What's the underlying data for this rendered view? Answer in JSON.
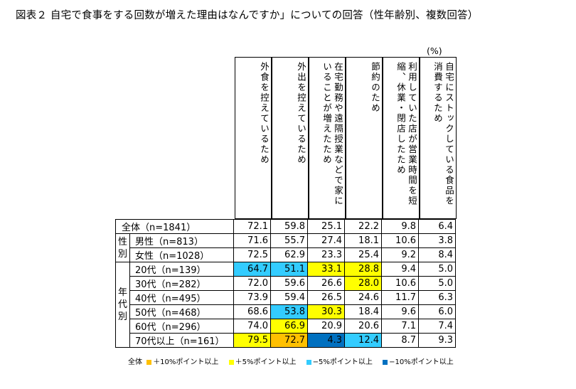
{
  "title": "図表２ 自宅で食事をする回数が増えた理由はなんですか」についての回答（性年齢別、複数回答）",
  "unit": "(%)",
  "columns": [
    "外食を控えているため",
    "外出を控えているため",
    "在宅勤務や遠隔授業などで家にいることが増えたため",
    "節約のため",
    "利用していた店が営業時間を短縮、休業・閉店したため",
    "自宅にストックしている食品を消費するため"
  ],
  "groups": {
    "sex": "性別",
    "age": "年代別"
  },
  "rows": [
    {
      "label": "全体（n=1841）",
      "values": [
        "72.1",
        "59.8",
        "25.1",
        "22.2",
        "9.8",
        "6.4"
      ]
    },
    {
      "label": "男性（n=813）",
      "values": [
        "71.6",
        "55.7",
        "27.4",
        "18.1",
        "10.6",
        "3.8"
      ]
    },
    {
      "label": "女性（n=1028）",
      "values": [
        "72.5",
        "62.9",
        "23.3",
        "25.4",
        "9.2",
        "8.4"
      ]
    },
    {
      "label": "20代（n=139）",
      "values": [
        "64.7",
        "51.1",
        "33.1",
        "28.8",
        "9.4",
        "5.0"
      ]
    },
    {
      "label": "30代（n=282）",
      "values": [
        "72.0",
        "59.6",
        "26.6",
        "28.0",
        "10.6",
        "5.0"
      ]
    },
    {
      "label": "40代（n=495）",
      "values": [
        "73.9",
        "59.4",
        "26.5",
        "24.6",
        "11.7",
        "6.3"
      ]
    },
    {
      "label": "50代（n=468）",
      "values": [
        "68.6",
        "53.8",
        "30.3",
        "18.4",
        "9.6",
        "6.0"
      ]
    },
    {
      "label": "60代（n=296）",
      "values": [
        "74.0",
        "66.9",
        "20.9",
        "20.6",
        "7.1",
        "7.4"
      ]
    },
    {
      "label": "70代以上（n=161）",
      "values": [
        "79.5",
        "72.7",
        "4.3",
        "12.4",
        "8.7",
        "9.3"
      ]
    }
  ],
  "highlights": [
    [
      null,
      null,
      null,
      null,
      null,
      null
    ],
    [
      null,
      null,
      null,
      null,
      null,
      null
    ],
    [
      null,
      null,
      null,
      null,
      null,
      null
    ],
    [
      "light_blue",
      "light_blue",
      "yellow",
      "yellow",
      null,
      null
    ],
    [
      null,
      null,
      null,
      "yellow",
      null,
      null
    ],
    [
      null,
      null,
      null,
      null,
      null,
      null
    ],
    [
      null,
      "light_blue",
      "yellow",
      null,
      null,
      null
    ],
    [
      null,
      "yellow",
      null,
      null,
      null,
      null
    ],
    [
      "yellow",
      "orange",
      "dark_blue",
      "light_blue",
      null,
      null
    ]
  ],
  "colors": {
    "orange": "#ffc000",
    "yellow": "#ffff00",
    "light_blue": "#33ccff",
    "dark_blue": "#0070c0"
  },
  "legend": {
    "prefix": "全体",
    "items": [
      {
        "color": "orange",
        "label": "＋10%ポイント以上"
      },
      {
        "color": "yellow",
        "label": "＋5%ポイント以上"
      },
      {
        "color": "light_blue",
        "label": "−5%ポイント以上"
      },
      {
        "color": "dark_blue",
        "label": "−10%ポイント以上"
      }
    ]
  }
}
